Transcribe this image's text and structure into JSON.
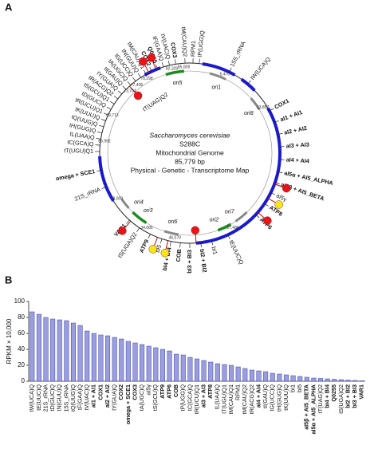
{
  "panel_labels": [
    "A",
    "B"
  ],
  "panel_a": {
    "center_text": [
      "Saccharomyces cerevisiae",
      "S288C",
      "Mitochondrial Genome",
      "85,779 bp",
      "Physical - Genetic - Transcriptome Map"
    ],
    "features": [
      {
        "text": "tP(UGG)Q",
        "bold": false
      },
      {
        "text": "RPM1",
        "bold": false
      },
      {
        "text": "tM(CAU)Q2",
        "bold": false
      },
      {
        "text": "COX3",
        "bold": true
      },
      {
        "text": "tV(UAC)Q",
        "bold": false
      },
      {
        "text": "tF(GAA)Q",
        "bold": false
      },
      {
        "text": "Q0255",
        "bold": true
      },
      {
        "text": "COX2",
        "bold": true
      },
      {
        "text": "tM(CAU)Q1",
        "bold": false
      },
      {
        "text": "tN(GUU)Q",
        "bold": false
      },
      {
        "text": "tG(UCC)Q",
        "bold": false
      },
      {
        "text": "tA(UGC)Q",
        "bold": false
      },
      {
        "text": "tI(GAU)Q",
        "bold": false
      },
      {
        "text": "tY(GUA)Q",
        "bold": false
      },
      {
        "text": "tR(ACG)Q2",
        "bold": false
      },
      {
        "text": "tS(GCU)Q1",
        "bold": false
      },
      {
        "text": "tD(GUC)Q",
        "bold": false
      },
      {
        "text": "tR(UCU)Q1",
        "bold": false
      },
      {
        "text": "tK(UUU)Q",
        "bold": false
      },
      {
        "text": "tQ(UUG)Q",
        "bold": false
      },
      {
        "text": "tH(GUG)Q",
        "bold": false
      },
      {
        "text": "tL(UAA)Q",
        "bold": false
      },
      {
        "text": "tC(GCA)Q",
        "bold": false
      },
      {
        "text": "tT(UGU)Q1",
        "bold": false
      },
      {
        "text": "omega + SCE1",
        "bold": true
      },
      {
        "text": "21S_rRNA",
        "bold": false
      },
      {
        "text": "VAR1",
        "bold": true
      },
      {
        "text": "tS(UGA)Q2",
        "bold": false
      },
      {
        "text": "ATP9",
        "bold": true
      },
      {
        "text": "bI5",
        "bold": false
      },
      {
        "text": "bI4 + BI4",
        "bold": true
      },
      {
        "text": "COB",
        "bold": true
      },
      {
        "text": "bI3 + BI3",
        "bold": true
      },
      {
        "text": "bI2 + BI2",
        "bold": true
      },
      {
        "text": "bI1",
        "bold": false
      },
      {
        "text": "tE(UUC)Q",
        "bold": false
      },
      {
        "text": "ATP6",
        "bold": true
      },
      {
        "text": "ATP8",
        "bold": true
      },
      {
        "text": "aI5γ",
        "bold": false
      },
      {
        "text": "aI5β + AI5_BETA",
        "bold": true
      },
      {
        "text": "aI5α + AI5_ALPHA",
        "bold": true
      },
      {
        "text": "aI4 + AI4",
        "bold": true
      },
      {
        "text": "aI3 + AI3",
        "bold": true
      },
      {
        "text": "aI2 + AI2",
        "bold": true
      },
      {
        "text": "aI1 + AI1",
        "bold": true
      },
      {
        "text": "COX1",
        "bold": true
      },
      {
        "text": "tW(UCA)Q",
        "bold": false
      },
      {
        "text": "15S_rRNA",
        "bold": false
      }
    ],
    "coordinates": [
      "85,008",
      "82,329",
      "6,470",
      "13,857",
      "78,298",
      "77,406",
      "73,704",
      "69,713",
      "65,992",
      "58,009",
      "34,686",
      "46,079",
      "27,486"
    ],
    "origins": [
      "ori5",
      "ori1",
      "ori8",
      "ori7",
      "ori2",
      "ori6",
      "ori3",
      "ori4"
    ],
    "inner_labels": [
      "tT(UAG)Q2"
    ]
  },
  "chart_data": {
    "type": "bar",
    "y_label": "RPKM × 10,000",
    "categories": [
      "tW(UCA)Q",
      "tE(UUC)Q",
      "21S_rRNA",
      "tD(GUC)Q",
      "tN(GUU)Q",
      "15S_rRNA",
      "tQ(UUG)Q",
      "tF(GAA)Q",
      "tV(UAC)Q",
      "aI1 + AI1",
      "COX1",
      "aI2 + AI2",
      "tY(GUA)Q",
      "COX2",
      "omega + SCE1",
      "COX3",
      "tA(UGC)Q",
      "aI5γ",
      "tS(GCU)Q",
      "ATP9",
      "ATP6",
      "COB",
      "tP(UGG)Q",
      "tC(GCA)Q",
      "tR(UCU)Q1",
      "aI3 + AI3",
      "ATP8",
      "tL(UAA)Q",
      "tT(UGU)Q1",
      "tM(CAU)Q1",
      "RPM1",
      "tM(CAU)Q2",
      "tR(ACG)Q2",
      "aI4 + AI4",
      "tI(GAU)Q",
      "tG(UCC)Q",
      "tH(GUG)Q",
      "tK(UUU)Q",
      "bI1",
      "bI5",
      "aI5β + AI5_BETA",
      "aI5α + AI5_ALPHA",
      "tT(UAG)Q2",
      "bI4 + BI4",
      "Q0255",
      "tS(UGA)Q2",
      "bI2 + BI2",
      "bI3 + BI3",
      "VAR1"
    ],
    "bold": [
      false,
      false,
      false,
      false,
      false,
      false,
      false,
      false,
      false,
      true,
      true,
      true,
      false,
      true,
      true,
      true,
      false,
      false,
      false,
      true,
      true,
      true,
      false,
      false,
      false,
      true,
      true,
      false,
      false,
      false,
      false,
      false,
      false,
      true,
      false,
      false,
      false,
      false,
      false,
      false,
      true,
      true,
      false,
      true,
      true,
      false,
      true,
      true,
      true
    ],
    "values": [
      87,
      84,
      80,
      78,
      77,
      76,
      73,
      70,
      63,
      60,
      58,
      57,
      55,
      53,
      50,
      48,
      46,
      44,
      42,
      40,
      38,
      34,
      33,
      30,
      28,
      26,
      24,
      22,
      21,
      20,
      18,
      16,
      14,
      13,
      12,
      10,
      9,
      8,
      7,
      6,
      5,
      4,
      3.5,
      3,
      2.5,
      2,
      1.5,
      1,
      0.5
    ],
    "color": "#9a9ee0",
    "ylim": [
      0,
      100
    ],
    "yticks": [
      0,
      20,
      40,
      60,
      80,
      100
    ],
    "grid": false
  }
}
